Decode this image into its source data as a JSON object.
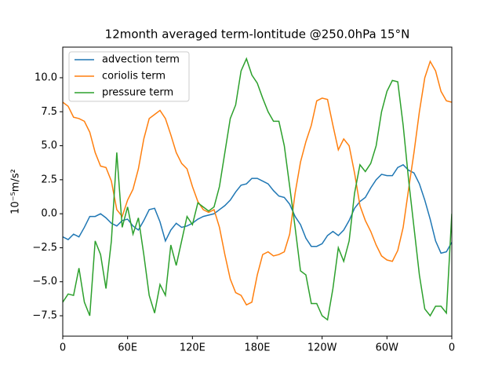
{
  "chart_data": {
    "type": "line",
    "title": "12month averaged term-lontitude @250.0hPa 15°N",
    "y_label": "10⁻⁵m/s²",
    "x": [
      0,
      5,
      10,
      15,
      20,
      25,
      30,
      35,
      40,
      45,
      50,
      55,
      60,
      65,
      70,
      75,
      80,
      85,
      90,
      95,
      100,
      105,
      110,
      115,
      120,
      125,
      130,
      135,
      140,
      145,
      150,
      155,
      160,
      165,
      170,
      175,
      180,
      185,
      190,
      195,
      200,
      205,
      210,
      215,
      220,
      225,
      230,
      235,
      240,
      245,
      250,
      255,
      260,
      265,
      270,
      275,
      280,
      285,
      290,
      295,
      300,
      305,
      310,
      315,
      320,
      325,
      330,
      335,
      340,
      345,
      350,
      355,
      360
    ],
    "series": [
      {
        "name": "advection term",
        "color": "#1f77b4",
        "values": [
          -1.7,
          -1.9,
          -1.5,
          -1.7,
          -1.0,
          -0.2,
          -0.2,
          0.0,
          -0.3,
          -0.7,
          -0.9,
          -0.5,
          -0.4,
          -0.9,
          -1.2,
          -0.5,
          0.3,
          0.4,
          -0.6,
          -2.0,
          -1.2,
          -0.7,
          -1.0,
          -0.9,
          -0.7,
          -0.4,
          -0.2,
          -0.1,
          0.0,
          0.3,
          0.6,
          1.0,
          1.6,
          2.1,
          2.2,
          2.6,
          2.6,
          2.4,
          2.2,
          1.7,
          1.3,
          1.2,
          0.7,
          -0.2,
          -0.8,
          -1.8,
          -2.4,
          -2.4,
          -2.2,
          -1.6,
          -1.3,
          -1.6,
          -1.2,
          -0.5,
          0.4,
          0.9,
          1.2,
          1.9,
          2.5,
          2.9,
          2.8,
          2.8,
          3.4,
          3.6,
          3.2,
          3.0,
          2.2,
          1.0,
          -0.4,
          -2.0,
          -2.9,
          -2.8,
          -2.1
        ]
      },
      {
        "name": "coriolis term",
        "color": "#ff7f0e",
        "values": [
          8.2,
          7.9,
          7.1,
          7.0,
          6.8,
          6.0,
          4.5,
          3.5,
          3.4,
          2.4,
          0.3,
          -0.2,
          1.0,
          1.8,
          3.3,
          5.5,
          7.0,
          7.3,
          7.6,
          7.0,
          5.8,
          4.5,
          3.7,
          3.3,
          2.0,
          0.9,
          0.3,
          0.1,
          0.3,
          -1.0,
          -3.0,
          -4.8,
          -5.8,
          -6.0,
          -6.7,
          -6.5,
          -4.5,
          -3.0,
          -2.8,
          -3.1,
          -3.0,
          -2.8,
          -1.5,
          1.5,
          3.8,
          5.3,
          6.5,
          8.3,
          8.5,
          8.4,
          6.5,
          4.7,
          5.5,
          5.0,
          3.0,
          0.6,
          -0.5,
          -1.3,
          -2.3,
          -3.1,
          -3.4,
          -3.5,
          -2.7,
          -1.0,
          1.8,
          4.5,
          7.5,
          10.0,
          11.2,
          10.5,
          9.0,
          8.3,
          8.2
        ]
      },
      {
        "name": "pressure term",
        "color": "#2ca02c",
        "values": [
          -6.5,
          -5.9,
          -6.0,
          -4.0,
          -6.5,
          -7.5,
          -2.0,
          -3.0,
          -5.5,
          -2.0,
          4.5,
          -1.0,
          0.5,
          -1.5,
          -0.3,
          -3.0,
          -6.0,
          -7.3,
          -5.2,
          -6.0,
          -2.3,
          -3.8,
          -2.0,
          -0.2,
          -0.8,
          0.8,
          0.5,
          0.2,
          0.5,
          2.0,
          4.5,
          7.0,
          8.0,
          10.5,
          11.4,
          10.2,
          9.6,
          8.5,
          7.5,
          6.8,
          6.8,
          5.0,
          2.0,
          -1.0,
          -4.2,
          -4.5,
          -6.6,
          -6.6,
          -7.5,
          -7.8,
          -5.5,
          -2.5,
          -3.5,
          -2.0,
          1.5,
          3.6,
          3.1,
          3.7,
          5.0,
          7.5,
          9.0,
          9.8,
          9.7,
          6.5,
          2.5,
          -1.0,
          -4.5,
          -7.0,
          -7.5,
          -6.8,
          -6.8,
          -7.3,
          0.0
        ]
      }
    ],
    "xlim": [
      0,
      360
    ],
    "xticks": [
      0,
      {
        "value": 60,
        "label": "60E"
      },
      {
        "value": 120,
        "label": "120E"
      },
      {
        "value": 180,
        "label": "180E"
      },
      {
        "value": 240,
        "label": "120W"
      },
      {
        "value": 300,
        "label": "60W"
      },
      {
        "value": 360,
        "label": "0"
      }
    ],
    "ylim": [
      -9.0,
      12.25
    ],
    "yticks": [
      {
        "value": -7.5,
        "label": "−7.5"
      },
      {
        "value": -5.0,
        "label": "−5.0"
      },
      {
        "value": -2.5,
        "label": "−2.5"
      },
      {
        "value": 0.0,
        "label": "0.0"
      },
      {
        "value": 2.5,
        "label": "2.5"
      },
      {
        "value": 5.0,
        "label": "5.0"
      },
      {
        "value": 7.5,
        "label": "7.5"
      },
      {
        "value": 10.0,
        "label": "10.0"
      }
    ],
    "grid": false,
    "legend": "upper left"
  }
}
